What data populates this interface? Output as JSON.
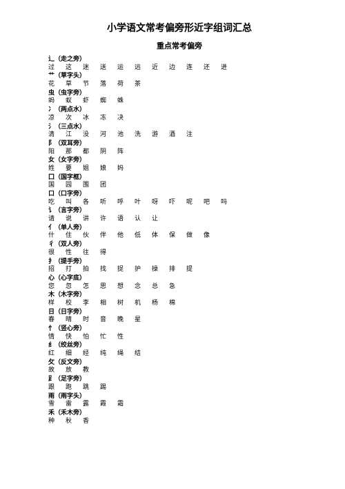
{
  "title": "小学语文常考偏旁形近字组词汇总",
  "subtitle": "重点常考偏旁",
  "sections": [
    {
      "header": "辶（走之旁）",
      "chars": [
        "过",
        "这",
        "迷",
        "送",
        "运",
        "远",
        "近",
        "边",
        "连",
        "还",
        "进"
      ]
    },
    {
      "header": "艹（草字头）",
      "chars": [
        "花",
        "草",
        "节",
        "落",
        "荷",
        "茶"
      ]
    },
    {
      "header": "虫（虫字旁）",
      "chars": [
        "蚂",
        "蚁",
        "虾",
        "蜘",
        "蛛"
      ]
    },
    {
      "header": "冫（两点水）",
      "chars": [
        "凉",
        "次",
        "冰",
        "冻",
        "决"
      ]
    },
    {
      "header": "氵（三点水）",
      "chars": [
        "清",
        "江",
        "没",
        "河",
        "池",
        "洗",
        "游",
        "酒",
        "注"
      ]
    },
    {
      "header": "阝（双耳旁）",
      "chars": [
        "阳",
        "那",
        "都",
        "阴",
        "阵"
      ]
    },
    {
      "header": "女（女字旁）",
      "chars": [
        "姓",
        "要",
        "姐",
        "娘",
        "妈"
      ]
    },
    {
      "header": "囗（国字框）",
      "chars": [
        "国",
        "园",
        "围",
        "团"
      ]
    },
    {
      "header": "口（口字旁）",
      "chars": [
        "吃",
        "叫",
        "各",
        "听",
        "呼",
        "叶",
        "呀",
        "吓",
        "呢",
        "吧",
        "吗"
      ]
    },
    {
      "header": "讠（言字旁）",
      "chars": [
        "请",
        "说",
        "讲",
        "许",
        "语",
        "认",
        "让"
      ]
    },
    {
      "header": "亻（单人旁）",
      "chars": [
        "什",
        "住",
        "伙",
        "伴",
        "他",
        "低",
        "体",
        "保",
        "做",
        "像"
      ]
    },
    {
      "header": "彳（双人旁）",
      "chars": [
        "很",
        "性",
        "往",
        "得"
      ]
    },
    {
      "header": "扌（提手旁）",
      "chars": [
        "招",
        "打",
        "拍",
        "找",
        "捉",
        "护",
        "操",
        "排",
        "提"
      ]
    },
    {
      "header": "心（心字底）",
      "chars": [
        "您",
        "忽",
        "怎",
        "思",
        "想",
        "念",
        "总",
        "急"
      ]
    },
    {
      "header": "木（木字旁）",
      "chars": [
        "样",
        "校",
        "李",
        "相",
        "树",
        "机",
        "杨",
        "棉"
      ]
    },
    {
      "header": "日（日字旁）",
      "chars": [
        "春",
        "晴",
        "时",
        "音",
        "晚",
        "星"
      ]
    },
    {
      "header": "忄（竖心旁）",
      "chars": [
        "情",
        "快",
        "怕",
        "忙",
        "性"
      ]
    },
    {
      "header": "纟（绞丝旁）",
      "chars": [
        "红",
        "细",
        "经",
        "纯",
        "绳",
        "结"
      ]
    },
    {
      "header": "攵（反文旁）",
      "chars": [
        "故",
        "放",
        "教"
      ]
    },
    {
      "header": "⻊（足字旁）",
      "chars": [
        "跟",
        "跑",
        "跳",
        "踢"
      ]
    },
    {
      "header": "雨（雨字头）",
      "chars": [
        "雪",
        "雷",
        "露",
        "霞",
        "霜"
      ]
    },
    {
      "header": "禾（禾木旁）",
      "chars": [
        "种",
        "秋",
        "香"
      ]
    }
  ]
}
